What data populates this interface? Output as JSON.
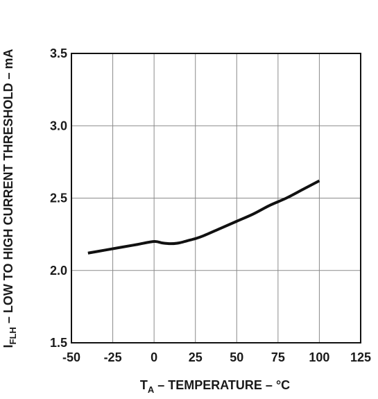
{
  "chart_data": {
    "type": "line",
    "xlabel_main": "T",
    "xlabel_sub": "A",
    "xlabel_rest": " – TEMPERATURE – °C",
    "ylabel_main": "I",
    "ylabel_sub": "FLH",
    "ylabel_rest": " – LOW TO HIGH CURRENT THRESHOLD – mA",
    "xlim": [
      -50,
      125
    ],
    "ylim": [
      1.5,
      3.5
    ],
    "x_ticks": [
      -50,
      -25,
      0,
      25,
      50,
      75,
      100,
      125
    ],
    "y_ticks": [
      1.5,
      2.0,
      2.5,
      3.0,
      3.5
    ],
    "x_tick_labels": [
      "-50",
      "-25",
      "0",
      "25",
      "50",
      "75",
      "100",
      "125"
    ],
    "y_tick_labels": [
      "1.5",
      "2.0",
      "2.5",
      "3.0",
      "3.5"
    ],
    "grid": true,
    "legend": "none",
    "series": [
      {
        "x": [
          -40,
          -30,
          -20,
          -10,
          0,
          5,
          10,
          15,
          20,
          25,
          30,
          40,
          50,
          60,
          70,
          80,
          90,
          100
        ],
        "y": [
          2.12,
          2.14,
          2.16,
          2.18,
          2.2,
          2.19,
          2.185,
          2.19,
          2.205,
          2.22,
          2.24,
          2.29,
          2.34,
          2.39,
          2.45,
          2.5,
          2.56,
          2.62
        ]
      }
    ]
  },
  "colors": {
    "line": "#111111",
    "grid": "#8a8a8a",
    "frame": "#111111",
    "text": "#1a1a1a"
  }
}
